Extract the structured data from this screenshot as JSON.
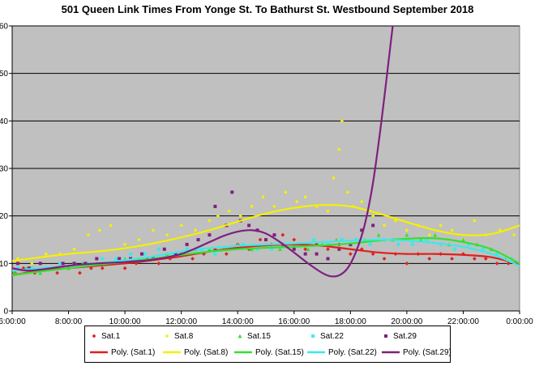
{
  "chart_data": {
    "type": "scatter",
    "title": "501 Queen Link Times From Yonge St. To Bathurst St. Westbound September 2018",
    "xlabel": "",
    "ylabel": "",
    "xlim": [
      6,
      24
    ],
    "ylim": [
      0,
      60
    ],
    "x_ticks": [
      "6:00:00",
      "8:00:00",
      "10:00:00",
      "12:00:00",
      "14:00:00",
      "16:00:00",
      "18:00:00",
      "20:00:00",
      "22:00:00",
      "0:00:00"
    ],
    "y_ticks": [
      "0",
      "10",
      "20",
      "30",
      "40",
      "50",
      "60"
    ],
    "grid": "horizontal",
    "plot_background": "#c0c0c0",
    "legend_position": "bottom",
    "series": [
      {
        "name": "Sat.1",
        "marker": "diamond",
        "color": "#e0201b",
        "points": [
          [
            6.1,
            8
          ],
          [
            6.4,
            9
          ],
          [
            6.8,
            8
          ],
          [
            7.2,
            9
          ],
          [
            7.6,
            8
          ],
          [
            8.0,
            9
          ],
          [
            8.4,
            8
          ],
          [
            8.8,
            9
          ],
          [
            9.2,
            9
          ],
          [
            9.6,
            10
          ],
          [
            10.0,
            9
          ],
          [
            10.4,
            10
          ],
          [
            10.8,
            11
          ],
          [
            11.2,
            10
          ],
          [
            11.6,
            11
          ],
          [
            12.0,
            12
          ],
          [
            12.4,
            11
          ],
          [
            12.8,
            12
          ],
          [
            13.2,
            13
          ],
          [
            13.6,
            12
          ],
          [
            14.0,
            14
          ],
          [
            14.4,
            13
          ],
          [
            14.8,
            15
          ],
          [
            15.2,
            14
          ],
          [
            15.6,
            16
          ],
          [
            16.0,
            15
          ],
          [
            16.4,
            13
          ],
          [
            16.8,
            14
          ],
          [
            17.2,
            13
          ],
          [
            17.6,
            14
          ],
          [
            18.0,
            12
          ],
          [
            18.4,
            13
          ],
          [
            18.8,
            12
          ],
          [
            19.2,
            11
          ],
          [
            19.6,
            12
          ],
          [
            20.0,
            10
          ],
          [
            20.4,
            12
          ],
          [
            20.8,
            11
          ],
          [
            21.2,
            12
          ],
          [
            21.6,
            11
          ],
          [
            22.0,
            12
          ],
          [
            22.4,
            11
          ],
          [
            22.8,
            11
          ],
          [
            23.2,
            10
          ],
          [
            23.6,
            10
          ],
          [
            23.9,
            10
          ]
        ]
      },
      {
        "name": "Sat.8",
        "marker": "circle",
        "color": "#f5f000",
        "points": [
          [
            6.2,
            11
          ],
          [
            6.7,
            10
          ],
          [
            7.2,
            12
          ],
          [
            7.7,
            12
          ],
          [
            8.2,
            13
          ],
          [
            8.7,
            16
          ],
          [
            9.1,
            17
          ],
          [
            9.5,
            18
          ],
          [
            10.0,
            14
          ],
          [
            10.5,
            15
          ],
          [
            11.0,
            17
          ],
          [
            11.5,
            16
          ],
          [
            12.0,
            18
          ],
          [
            12.5,
            17
          ],
          [
            13.0,
            19
          ],
          [
            13.3,
            20
          ],
          [
            13.7,
            21
          ],
          [
            14.1,
            20
          ],
          [
            14.5,
            22
          ],
          [
            14.9,
            24
          ],
          [
            15.3,
            22
          ],
          [
            15.7,
            25
          ],
          [
            16.1,
            23
          ],
          [
            16.4,
            24
          ],
          [
            16.8,
            22
          ],
          [
            17.2,
            21
          ],
          [
            17.4,
            28
          ],
          [
            17.6,
            34
          ],
          [
            17.7,
            40
          ],
          [
            17.9,
            25
          ],
          [
            18.1,
            22
          ],
          [
            18.4,
            23
          ],
          [
            18.8,
            20
          ],
          [
            19.2,
            18
          ],
          [
            19.6,
            19
          ],
          [
            20.0,
            17
          ],
          [
            20.4,
            18
          ],
          [
            20.8,
            16
          ],
          [
            21.2,
            18
          ],
          [
            21.6,
            17
          ],
          [
            22.0,
            15
          ],
          [
            22.4,
            19
          ],
          [
            22.8,
            16
          ],
          [
            23.3,
            17
          ],
          [
            23.8,
            16
          ]
        ]
      },
      {
        "name": "Sat.15",
        "marker": "triangle",
        "color": "#33e033",
        "points": [
          [
            6.1,
            8
          ],
          [
            6.5,
            9
          ],
          [
            7.0,
            8
          ],
          [
            7.5,
            9
          ],
          [
            8.0,
            9
          ],
          [
            8.5,
            10
          ],
          [
            9.0,
            10
          ],
          [
            9.5,
            10
          ],
          [
            10.0,
            11
          ],
          [
            10.5,
            11
          ],
          [
            11.0,
            11
          ],
          [
            11.5,
            12
          ],
          [
            12.0,
            12
          ],
          [
            12.5,
            13
          ],
          [
            13.0,
            13
          ],
          [
            13.5,
            13
          ],
          [
            14.0,
            14
          ],
          [
            14.5,
            13
          ],
          [
            15.0,
            14
          ],
          [
            15.5,
            13
          ],
          [
            16.0,
            14
          ],
          [
            16.5,
            13
          ],
          [
            17.0,
            14
          ],
          [
            17.5,
            15
          ],
          [
            18.0,
            14
          ],
          [
            18.5,
            15
          ],
          [
            19.0,
            16
          ],
          [
            19.5,
            15
          ],
          [
            20.0,
            16
          ],
          [
            20.5,
            15
          ],
          [
            21.0,
            16
          ],
          [
            21.5,
            14
          ],
          [
            22.0,
            15
          ],
          [
            22.5,
            14
          ],
          [
            23.0,
            13
          ],
          [
            23.5,
            11
          ],
          [
            23.9,
            10
          ]
        ]
      },
      {
        "name": "Sat.22",
        "marker": "star",
        "color": "#3de8e8",
        "points": [
          [
            6.2,
            9
          ],
          [
            6.7,
            9
          ],
          [
            7.2,
            9
          ],
          [
            7.7,
            10
          ],
          [
            8.2,
            10
          ],
          [
            8.7,
            10
          ],
          [
            9.2,
            11
          ],
          [
            9.7,
            11
          ],
          [
            10.2,
            12
          ],
          [
            10.7,
            12
          ],
          [
            11.2,
            13
          ],
          [
            11.7,
            12
          ],
          [
            12.2,
            13
          ],
          [
            12.7,
            13
          ],
          [
            13.2,
            12
          ],
          [
            13.7,
            13
          ],
          [
            14.2,
            14
          ],
          [
            14.7,
            13
          ],
          [
            15.2,
            13
          ],
          [
            15.7,
            14
          ],
          [
            16.2,
            14
          ],
          [
            16.7,
            15
          ],
          [
            17.2,
            14
          ],
          [
            17.7,
            15
          ],
          [
            18.2,
            15
          ],
          [
            18.7,
            14
          ],
          [
            19.2,
            15
          ],
          [
            19.7,
            14
          ],
          [
            20.2,
            14
          ],
          [
            20.7,
            15
          ],
          [
            21.2,
            14
          ],
          [
            21.7,
            13
          ],
          [
            22.2,
            14
          ],
          [
            22.7,
            13
          ],
          [
            23.2,
            12
          ],
          [
            23.7,
            11
          ]
        ]
      },
      {
        "name": "Sat.29",
        "marker": "square",
        "color": "#7f1f7f",
        "points": [
          [
            6.2,
            10
          ],
          [
            6.6,
            9
          ],
          [
            7.0,
            10
          ],
          [
            7.4,
            9
          ],
          [
            7.8,
            10
          ],
          [
            8.2,
            10
          ],
          [
            8.6,
            10
          ],
          [
            9.0,
            11
          ],
          [
            9.4,
            10
          ],
          [
            9.8,
            11
          ],
          [
            10.2,
            11
          ],
          [
            10.6,
            12
          ],
          [
            11.0,
            11
          ],
          [
            11.4,
            13
          ],
          [
            11.8,
            12
          ],
          [
            12.2,
            14
          ],
          [
            12.6,
            15
          ],
          [
            13.0,
            16
          ],
          [
            13.2,
            22
          ],
          [
            13.6,
            18
          ],
          [
            13.8,
            25
          ],
          [
            14.1,
            19
          ],
          [
            14.4,
            18
          ],
          [
            14.7,
            17
          ],
          [
            15.0,
            15
          ],
          [
            15.3,
            16
          ],
          [
            15.6,
            14
          ],
          [
            16.0,
            13
          ],
          [
            16.4,
            12
          ],
          [
            16.8,
            12
          ],
          [
            17.2,
            11
          ],
          [
            17.6,
            13
          ],
          [
            18.0,
            14
          ],
          [
            18.4,
            17
          ],
          [
            18.8,
            18
          ]
        ]
      }
    ],
    "trendlines": [
      {
        "name": "Poly. (Sat.1)",
        "color": "#e0201b",
        "points": [
          [
            6,
            7.5
          ],
          [
            7,
            8.5
          ],
          [
            8,
            9
          ],
          [
            9,
            9.5
          ],
          [
            10,
            10
          ],
          [
            11,
            10.7
          ],
          [
            12,
            11.5
          ],
          [
            13,
            12.5
          ],
          [
            14,
            13.3
          ],
          [
            15,
            13.8
          ],
          [
            16,
            14
          ],
          [
            17,
            13.7
          ],
          [
            18,
            13
          ],
          [
            19,
            12.3
          ],
          [
            20,
            12
          ],
          [
            21,
            12
          ],
          [
            22,
            11.8
          ],
          [
            23,
            11.3
          ],
          [
            24,
            9.8
          ]
        ]
      },
      {
        "name": "Poly. (Sat.8)",
        "color": "#f5f000",
        "points": [
          [
            6,
            10.5
          ],
          [
            7,
            11.3
          ],
          [
            8,
            12
          ],
          [
            9,
            12.5
          ],
          [
            10,
            13.2
          ],
          [
            11,
            14.2
          ],
          [
            12,
            15.5
          ],
          [
            13,
            17
          ],
          [
            14,
            18.8
          ],
          [
            15,
            20.5
          ],
          [
            16,
            21.7
          ],
          [
            17,
            22.3
          ],
          [
            18,
            22
          ],
          [
            19,
            20.5
          ],
          [
            20,
            18.7
          ],
          [
            21,
            17
          ],
          [
            22,
            16
          ],
          [
            23,
            16.2
          ],
          [
            24,
            18
          ]
        ]
      },
      {
        "name": "Poly. (Sat.15)",
        "color": "#33e033",
        "points": [
          [
            6,
            7.5
          ],
          [
            7,
            8.3
          ],
          [
            8,
            9
          ],
          [
            9,
            9.7
          ],
          [
            10,
            10.3
          ],
          [
            11,
            11
          ],
          [
            12,
            11.8
          ],
          [
            13,
            12.5
          ],
          [
            14,
            13
          ],
          [
            15,
            13.3
          ],
          [
            16,
            13.5
          ],
          [
            17,
            13.8
          ],
          [
            18,
            14.2
          ],
          [
            19,
            14.8
          ],
          [
            20,
            15.2
          ],
          [
            21,
            15.3
          ],
          [
            22,
            14.5
          ],
          [
            23,
            13
          ],
          [
            24,
            10
          ]
        ]
      },
      {
        "name": "Poly. (Sat.22)",
        "color": "#3de8e8",
        "points": [
          [
            6,
            8.5
          ],
          [
            7,
            9
          ],
          [
            8,
            9.5
          ],
          [
            9,
            10
          ],
          [
            10,
            10.7
          ],
          [
            11,
            11.5
          ],
          [
            12,
            12.5
          ],
          [
            13,
            13.2
          ],
          [
            14,
            13.7
          ],
          [
            15,
            14
          ],
          [
            16,
            14.2
          ],
          [
            17,
            14.5
          ],
          [
            18,
            14.8
          ],
          [
            19,
            15
          ],
          [
            20,
            14.8
          ],
          [
            21,
            14.3
          ],
          [
            22,
            13.5
          ],
          [
            23,
            12
          ],
          [
            24,
            9.5
          ]
        ]
      },
      {
        "name": "Poly. (Sat.29)",
        "color": "#7f1f7f",
        "points": [
          [
            6,
            9
          ],
          [
            6.5,
            8.5
          ],
          [
            7,
            8.7
          ],
          [
            8,
            9.5
          ],
          [
            9,
            10
          ],
          [
            10,
            10.3
          ],
          [
            11,
            10.8
          ],
          [
            12,
            12
          ],
          [
            13,
            14.5
          ],
          [
            13.5,
            15.8
          ],
          [
            14,
            16.7
          ],
          [
            14.5,
            17
          ],
          [
            15,
            16.3
          ],
          [
            15.5,
            14.5
          ],
          [
            16,
            12.3
          ],
          [
            16.5,
            10
          ],
          [
            17,
            8
          ],
          [
            17.3,
            7.3
          ],
          [
            17.6,
            7.5
          ],
          [
            17.9,
            9
          ],
          [
            18.2,
            12.5
          ],
          [
            18.5,
            18
          ],
          [
            18.8,
            27
          ],
          [
            19.1,
            40
          ],
          [
            19.4,
            55
          ],
          [
            19.5,
            60
          ]
        ]
      }
    ]
  }
}
